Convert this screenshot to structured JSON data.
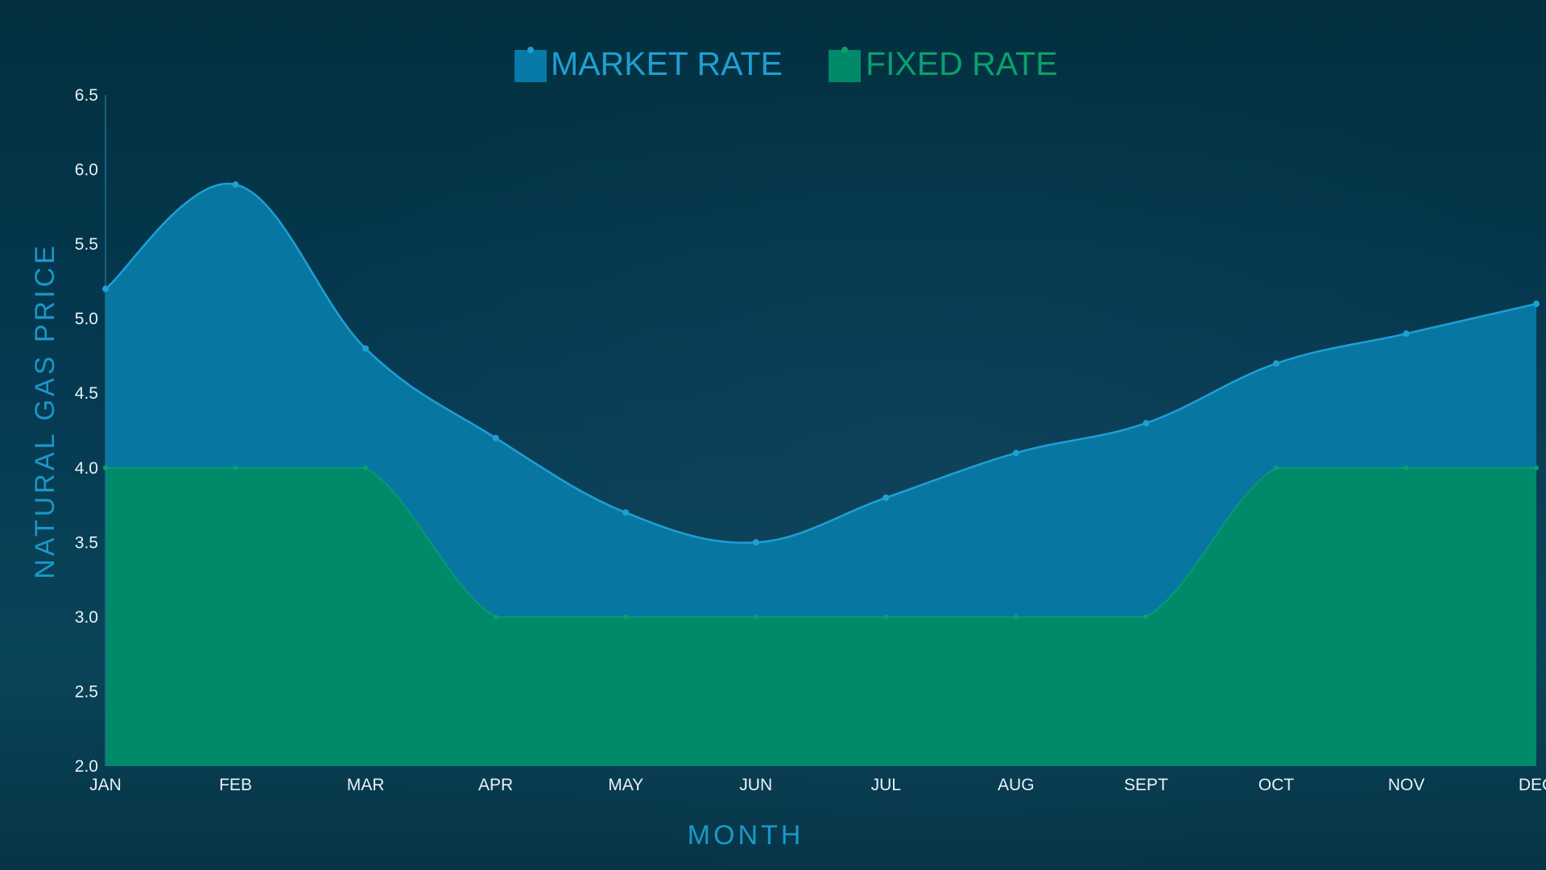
{
  "chart_data": {
    "type": "area",
    "categories": [
      "JAN",
      "FEB",
      "MAR",
      "APR",
      "MAY",
      "JUN",
      "JUL",
      "AUG",
      "SEPT",
      "OCT",
      "NOV",
      "DEC"
    ],
    "series": [
      {
        "name": "MARKET RATE",
        "values": [
          5.2,
          5.9,
          4.8,
          4.2,
          3.7,
          3.5,
          3.8,
          4.1,
          4.3,
          4.7,
          4.9,
          5.1
        ],
        "color": "#1f9fd4",
        "fill": "#077aa7"
      },
      {
        "name": "FIXED RATE",
        "values": [
          4.0,
          4.0,
          4.0,
          3.0,
          3.0,
          3.0,
          3.0,
          3.0,
          3.0,
          4.0,
          4.0,
          4.0
        ],
        "color": "#0aa06e",
        "fill": "#008a6a"
      }
    ],
    "xlabel": "MONTH",
    "ylabel": "NATURAL GAS PRICE",
    "ylim": [
      2.0,
      6.5
    ],
    "yticks": [
      "2.0",
      "2.5",
      "3.0",
      "3.5",
      "4.0",
      "4.5",
      "5.0",
      "5.5",
      "6.0",
      "6.5"
    ],
    "grid": false,
    "legend_position": "top-center",
    "axis_title_color": "#1b97c9",
    "tick_label_color": "#e9f2f6"
  }
}
